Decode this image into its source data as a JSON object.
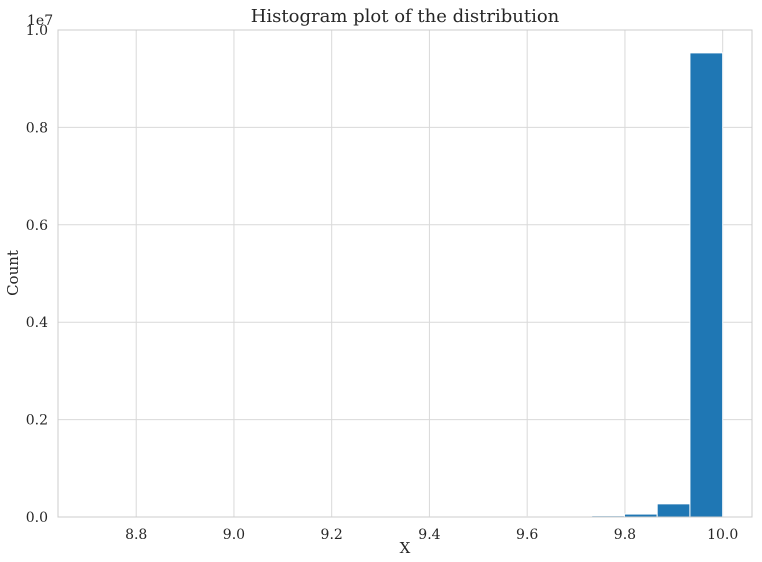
{
  "chart_data": {
    "type": "bar",
    "title": "Histogram plot of the distribution",
    "xlabel": "X",
    "ylabel": "Count",
    "y_offset_label": "1e7",
    "xlim": [
      8.64,
      10.06
    ],
    "ylim": [
      0,
      1.0
    ],
    "y_scale_multiplier": 10000000,
    "grid": true,
    "x_ticks": [
      8.8,
      9.0,
      9.2,
      9.4,
      9.6,
      9.8,
      10.0
    ],
    "x_tick_labels": [
      "8.8",
      "9.0",
      "9.2",
      "9.4",
      "9.6",
      "9.8",
      "10.0"
    ],
    "y_ticks": [
      0.0,
      0.2,
      0.4,
      0.6,
      0.8,
      1.0
    ],
    "y_tick_labels": [
      "0.0",
      "0.2",
      "0.4",
      "0.6",
      "0.8",
      "1.0"
    ],
    "bar_color": "#1f77b4",
    "bins": [
      {
        "x0": 8.66,
        "x1": 8.727,
        "value": 2e-05
      },
      {
        "x0": 8.727,
        "x1": 8.794,
        "value": 2e-05
      },
      {
        "x0": 8.794,
        "x1": 8.861,
        "value": 3e-05
      },
      {
        "x0": 8.861,
        "x1": 8.928,
        "value": 3e-05
      },
      {
        "x0": 8.928,
        "x1": 8.995,
        "value": 4e-05
      },
      {
        "x0": 8.995,
        "x1": 9.062,
        "value": 5e-05
      },
      {
        "x0": 9.062,
        "x1": 9.129,
        "value": 6e-05
      },
      {
        "x0": 9.129,
        "x1": 9.196,
        "value": 8e-05
      },
      {
        "x0": 9.196,
        "x1": 9.263,
        "value": 0.0001
      },
      {
        "x0": 9.263,
        "x1": 9.33,
        "value": 0.00013
      },
      {
        "x0": 9.33,
        "x1": 9.397,
        "value": 0.00017
      },
      {
        "x0": 9.397,
        "x1": 9.464,
        "value": 0.00023
      },
      {
        "x0": 9.464,
        "x1": 9.531,
        "value": 0.00032
      },
      {
        "x0": 9.531,
        "x1": 9.598,
        "value": 0.00046
      },
      {
        "x0": 9.598,
        "x1": 9.665,
        "value": 0.0007
      },
      {
        "x0": 9.665,
        "x1": 9.732,
        "value": 0.0012
      },
      {
        "x0": 9.732,
        "x1": 9.799,
        "value": 0.0025
      },
      {
        "x0": 9.799,
        "x1": 9.866,
        "value": 0.006
      },
      {
        "x0": 9.866,
        "x1": 9.933,
        "value": 0.027
      },
      {
        "x0": 9.933,
        "x1": 10.0,
        "value": 0.953
      }
    ]
  }
}
